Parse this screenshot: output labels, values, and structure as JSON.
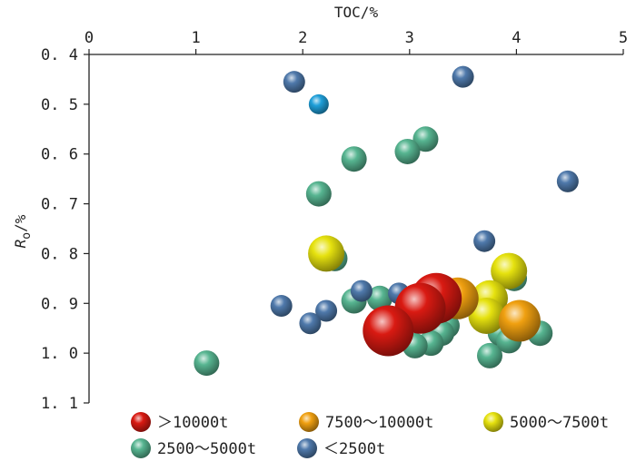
{
  "chart_data": {
    "type": "scatter",
    "xlabel": "TOC/%",
    "ylabel_main": "R",
    "ylabel_sub": "o",
    "ylabel_unit": "/%",
    "xlim": [
      0,
      5
    ],
    "ylim": [
      0.4,
      1.1
    ],
    "y_inverted": true,
    "x_axis_position": "top",
    "x_ticks": [
      {
        "v": 0,
        "label": "0"
      },
      {
        "v": 1,
        "label": "1"
      },
      {
        "v": 2,
        "label": "2"
      },
      {
        "v": 3,
        "label": "3"
      },
      {
        "v": 4,
        "label": "4"
      },
      {
        "v": 5,
        "label": "5"
      }
    ],
    "y_ticks": [
      {
        "v": 0.4,
        "label": "0. 4"
      },
      {
        "v": 0.5,
        "label": "0. 5"
      },
      {
        "v": 0.6,
        "label": "0. 6"
      },
      {
        "v": 0.7,
        "label": "0. 7"
      },
      {
        "v": 0.8,
        "label": "0. 8"
      },
      {
        "v": 0.9,
        "label": "0. 9"
      },
      {
        "v": 1.0,
        "label": "1. 0"
      },
      {
        "v": 1.1,
        "label": "1. 1"
      }
    ],
    "legend_position": "bottom",
    "series": [
      {
        "name": "＞10000t",
        "color": "#d91a12",
        "marker_size": 28,
        "points": [
          {
            "x": 3.25,
            "y": 0.89
          },
          {
            "x": 3.1,
            "y": 0.91
          },
          {
            "x": 2.8,
            "y": 0.955
          }
        ]
      },
      {
        "name": "7500～10000t",
        "color": "#f0a010",
        "marker_size": 23,
        "points": [
          {
            "x": 3.45,
            "y": 0.89
          },
          {
            "x": 4.03,
            "y": 0.935
          }
        ]
      },
      {
        "name": "5000～7500t",
        "color": "#e6e20f",
        "marker_size": 20,
        "points": [
          {
            "x": 2.22,
            "y": 0.8
          },
          {
            "x": 3.93,
            "y": 0.835
          },
          {
            "x": 3.75,
            "y": 0.89
          },
          {
            "x": 3.72,
            "y": 0.925
          }
        ]
      },
      {
        "name": "2500～5000t",
        "color": "#57b591",
        "marker_size": 14,
        "points": [
          {
            "x": 3.15,
            "y": 0.57
          },
          {
            "x": 2.98,
            "y": 0.595
          },
          {
            "x": 2.48,
            "y": 0.61
          },
          {
            "x": 2.15,
            "y": 0.68
          },
          {
            "x": 2.3,
            "y": 0.81
          },
          {
            "x": 2.48,
            "y": 0.895
          },
          {
            "x": 2.72,
            "y": 0.89
          },
          {
            "x": 3.35,
            "y": 0.945
          },
          {
            "x": 3.3,
            "y": 0.96
          },
          {
            "x": 3.2,
            "y": 0.98
          },
          {
            "x": 3.05,
            "y": 0.985
          },
          {
            "x": 3.75,
            "y": 1.005
          },
          {
            "x": 3.85,
            "y": 0.96
          },
          {
            "x": 3.98,
            "y": 0.85
          },
          {
            "x": 3.93,
            "y": 0.975
          },
          {
            "x": 4.22,
            "y": 0.96
          },
          {
            "x": 1.1,
            "y": 1.02
          }
        ]
      },
      {
        "name": "＜2500t",
        "color": "#4f79ab",
        "marker_size": 12,
        "points": [
          {
            "x": 1.92,
            "y": 0.455
          },
          {
            "x": 3.5,
            "y": 0.445
          },
          {
            "x": 4.48,
            "y": 0.655
          },
          {
            "x": 3.7,
            "y": 0.775
          },
          {
            "x": 1.8,
            "y": 0.905
          },
          {
            "x": 2.22,
            "y": 0.915
          },
          {
            "x": 2.07,
            "y": 0.94
          },
          {
            "x": 2.55,
            "y": 0.875
          },
          {
            "x": 2.9,
            "y": 0.88
          },
          {
            "x": 3.35,
            "y": 0.91
          }
        ]
      },
      {
        "name": "",
        "color": "#1f9fd9",
        "marker_size": 11,
        "legend": false,
        "points": [
          {
            "x": 2.15,
            "y": 0.5
          }
        ]
      }
    ]
  }
}
